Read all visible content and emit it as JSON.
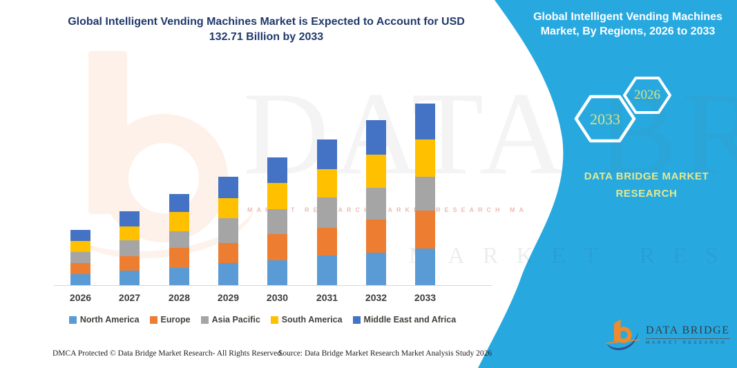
{
  "left_title": {
    "line1": "Global Intelligent Vending Machines Market is Expected to Account for USD",
    "line2": "132.71 Billion by 2033"
  },
  "right_panel": {
    "title_line1": "Global Intelligent Vending Machines",
    "title_line2": "Market, By Regions, 2026 to 2033",
    "hexagon_large_label": "2033",
    "hexagon_small_label": "2026",
    "brand_line1": "DATA BRIDGE MARKET",
    "brand_line2": "RESEARCH",
    "background_color": "#27a9e0",
    "accent_text_color": "#dce383"
  },
  "chart_data": {
    "type": "bar",
    "stacked": true,
    "unit": "USD Billion",
    "title": "Global Intelligent Vending Machines Market is Expected to Account for USD 132.71 Billion by 2033",
    "xlabel": "",
    "ylabel": "",
    "y_axis_visible": false,
    "grid": false,
    "legend_position": "bottom",
    "ylim": [
      0,
      140
    ],
    "categories": [
      "2026",
      "2027",
      "2028",
      "2029",
      "2030",
      "2031",
      "2032",
      "2033"
    ],
    "series": [
      {
        "name": "North America",
        "color": "#5B9BD5",
        "values": [
          8.1,
          10.6,
          12.6,
          16.0,
          18.1,
          21.5,
          23.7,
          26.9
        ]
      },
      {
        "name": "Europe",
        "color": "#ED7D31",
        "values": [
          8.2,
          10.7,
          14.6,
          14.6,
          19.0,
          20.5,
          24.2,
          27.7
        ]
      },
      {
        "name": "Asia Pacific",
        "color": "#A5A5A5",
        "values": [
          7.7,
          11.4,
          12.3,
          18.1,
          18.5,
          21.9,
          23.2,
          24.5
        ]
      },
      {
        "name": "South America",
        "color": "#FFC000",
        "values": [
          8.3,
          10.1,
          13.9,
          14.8,
          19.1,
          20.8,
          23.9,
          27.2
        ]
      },
      {
        "name": "Middle East and Africa",
        "color": "#4472C4",
        "values": [
          8.1,
          11.2,
          13.3,
          15.8,
          18.4,
          21.4,
          25.2,
          26.4
        ]
      }
    ],
    "totals_usd_billion_estimated": [
      40.4,
      54.0,
      66.7,
      79.3,
      93.1,
      106.1,
      120.2,
      132.71
    ]
  },
  "watermarks": {
    "big_text": "DATA BRIDGE",
    "spaced_text": "MARKET RESEARCH",
    "tagline": "MARKET RESEARCH"
  },
  "footer": {
    "left": "DMCA Protected © Data Bridge Market Research-  All Rights Reserved.",
    "source": "Source: Data Bridge Market Research  Market Analysis Study 2026"
  },
  "logo": {
    "brand": "DATA BRIDGE",
    "sub": "MARKET RESEARCH"
  }
}
